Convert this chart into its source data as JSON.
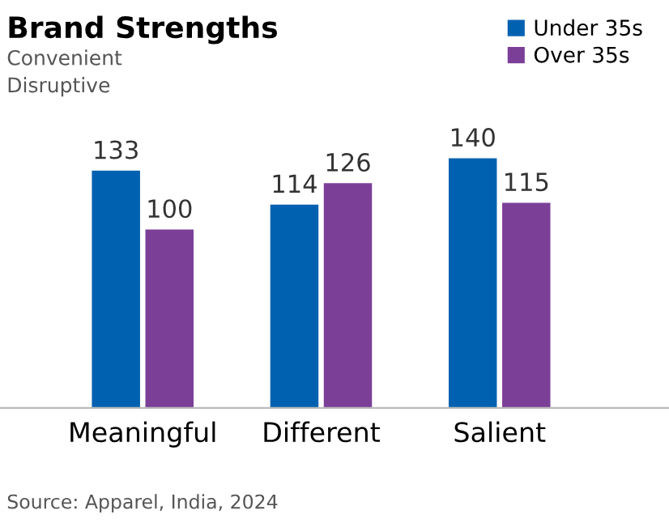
{
  "chart_data": {
    "type": "bar",
    "title": "Brand Strengths",
    "subtitle": "Convenient\nDisruptive",
    "categories": [
      "Meaningful",
      "Different",
      "Salient"
    ],
    "series": [
      {
        "name": "Under 35s",
        "color": "#0061b0",
        "values": [
          133,
          114,
          140
        ]
      },
      {
        "name": "Over 35s",
        "color": "#7b3f98",
        "values": [
          100,
          126,
          115
        ]
      }
    ],
    "data_labels": true,
    "legend": "top right",
    "grid": false,
    "annotations": [
      "Source: Apparel, India, 2024"
    ]
  }
}
